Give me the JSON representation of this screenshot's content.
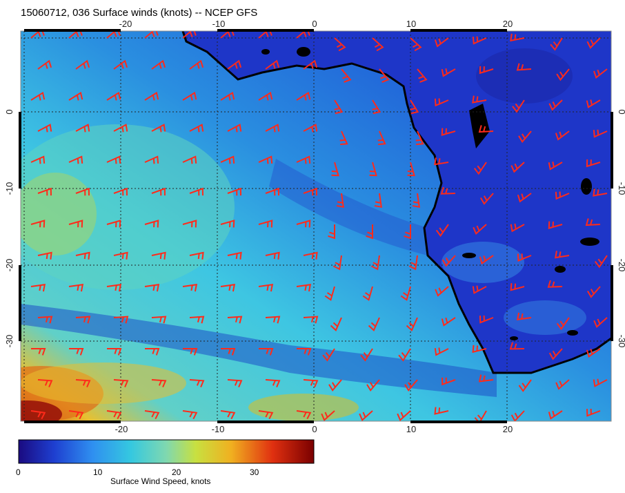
{
  "title": "15060712, 036 Surface winds (knots) -- NCEP GFS",
  "map": {
    "lon_ticks": [
      "-20",
      "-10",
      "0",
      "10",
      "20"
    ],
    "lat_ticks": [
      "0",
      "-10",
      "-20",
      "-30"
    ],
    "barb_color": "#ff2a1a",
    "coast_color": "#000000"
  },
  "colorbar": {
    "label": "Surface Wind Speed, knots",
    "ticks": [
      "0",
      "10",
      "20",
      "30"
    ],
    "colors": [
      "#1a0a80",
      "#1e3fd0",
      "#2f8ff0",
      "#35c8e0",
      "#7fd8b0",
      "#c8e040",
      "#f0b020",
      "#e03010",
      "#7a0000"
    ]
  }
}
